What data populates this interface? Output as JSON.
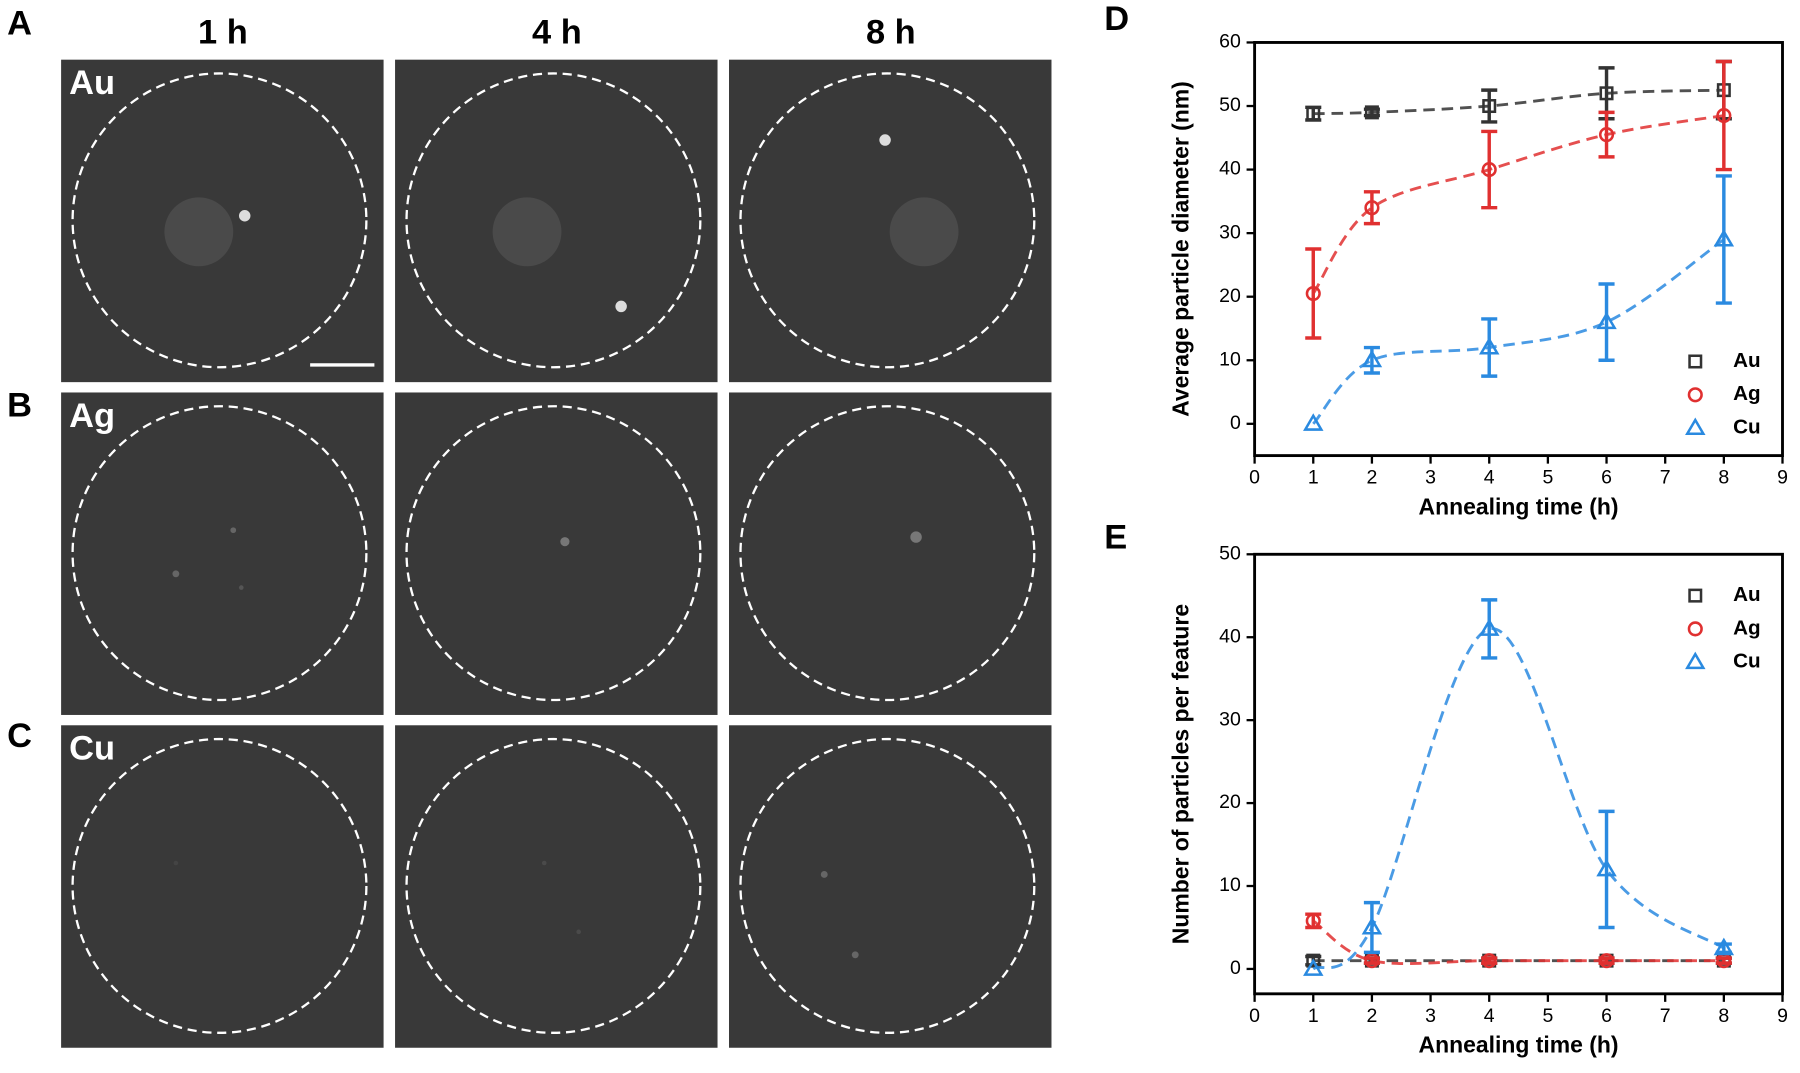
{
  "panels": {
    "letters": [
      "A",
      "B",
      "C"
    ],
    "columns": [
      "1 h",
      "4 h",
      "8 h"
    ],
    "rows": [
      "Au",
      "Ag",
      "Cu"
    ]
  },
  "chart_data": [
    {
      "type": "scatter",
      "label": "D",
      "xlabel": "Annealing time (h)",
      "ylabel": "Average particle diameter (nm)",
      "xlim": [
        0,
        9
      ],
      "xticks": [
        0,
        1,
        2,
        3,
        4,
        5,
        6,
        7,
        8,
        9
      ],
      "ylim": [
        -5,
        60
      ],
      "yticks": [
        0,
        10,
        20,
        30,
        40,
        50,
        60
      ],
      "legend": "lower right",
      "x": [
        1,
        2,
        4,
        6,
        8
      ],
      "series": [
        {
          "name": "Au",
          "color": "#333333",
          "marker": "square",
          "values": [
            48.8,
            49,
            50,
            52,
            52.5
          ],
          "errors": [
            1,
            0.5,
            2.5,
            4,
            4.5
          ]
        },
        {
          "name": "Ag",
          "color": "#e03030",
          "marker": "circle",
          "values": [
            20.5,
            34,
            40,
            45.5,
            48.5
          ],
          "errors": [
            7,
            2.5,
            6,
            3.5,
            8.5
          ]
        },
        {
          "name": "Cu",
          "color": "#2a8ae0",
          "marker": "triangle",
          "values": [
            0,
            10,
            12,
            16,
            29
          ],
          "errors": [
            0,
            2,
            4.5,
            6,
            10
          ]
        }
      ]
    },
    {
      "type": "scatter",
      "label": "E",
      "xlabel": "Annealing time (h)",
      "ylabel": "Number of particles per feature",
      "xlim": [
        0,
        9
      ],
      "xticks": [
        0,
        1,
        2,
        3,
        4,
        5,
        6,
        7,
        8,
        9
      ],
      "ylim": [
        -3,
        50
      ],
      "yticks": [
        0,
        10,
        20,
        30,
        40,
        50
      ],
      "legend": "upper right",
      "x": [
        1,
        2,
        4,
        6,
        8
      ],
      "series": [
        {
          "name": "Au",
          "color": "#333333",
          "marker": "square",
          "values": [
            1,
            1,
            1,
            1,
            1
          ],
          "errors": [
            0.5,
            0.3,
            0.3,
            0.3,
            0.3
          ]
        },
        {
          "name": "Ag",
          "color": "#e03030",
          "marker": "circle",
          "values": [
            5.8,
            1,
            1,
            1,
            1
          ],
          "errors": [
            0.8,
            0.3,
            0.3,
            0.3,
            0.3
          ]
        },
        {
          "name": "Cu",
          "color": "#2a8ae0",
          "marker": "triangle",
          "values": [
            0,
            5,
            41,
            12,
            2.5
          ],
          "errors": [
            0,
            3,
            3.5,
            7,
            0.5
          ]
        }
      ]
    }
  ]
}
